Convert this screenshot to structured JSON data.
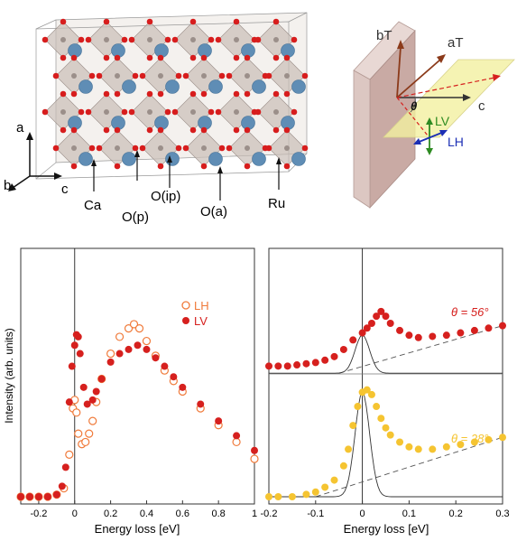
{
  "crystal": {
    "axes": {
      "a": "a",
      "b": "b",
      "c": "c"
    },
    "labels": [
      "Ca",
      "O(p)",
      "O(ip)",
      "O(a)",
      "Ru"
    ]
  },
  "geometry": {
    "labels": {
      "bT": "bT",
      "aT": "aT",
      "c": "c",
      "theta": "θ",
      "LV": "LV",
      "LH": "LH"
    },
    "colors": {
      "bT": "#8b3a1a",
      "aT": "#8b3a1a",
      "LV": "#2e8b22",
      "LH": "#1c2fb5",
      "plane": "#f3f0a0",
      "slab": "#d9c3bd"
    }
  },
  "chart_data": [
    {
      "type": "scatter",
      "xlabel": "Energy loss [eV]",
      "ylabel": "Intensity (arb. units)",
      "xlim": [
        -0.3,
        1.0
      ],
      "xticks": [
        -0.2,
        0,
        0.2,
        0.4,
        0.6,
        0.8,
        1
      ],
      "xtick_labels": [
        "-0.2",
        "0",
        "0.2",
        "0.4",
        "0.6",
        "0.8",
        "1"
      ],
      "ylim": [
        0,
        1.0
      ],
      "legend": "top-right",
      "series": [
        {
          "name": "LH",
          "color": "#f07a3a",
          "marker": "open-circle",
          "x": [
            -0.3,
            -0.25,
            -0.2,
            -0.15,
            -0.1,
            -0.06,
            -0.03,
            -0.01,
            0.0,
            0.01,
            0.02,
            0.04,
            0.06,
            0.08,
            0.1,
            0.12,
            0.15,
            0.2,
            0.25,
            0.3,
            0.33,
            0.36,
            0.4,
            0.45,
            0.5,
            0.55,
            0.6,
            0.7,
            0.8,
            0.9,
            1.0
          ],
          "y": [
            0.0,
            0.0,
            0.0,
            0.0,
            0.01,
            0.04,
            0.2,
            0.42,
            0.46,
            0.4,
            0.3,
            0.25,
            0.26,
            0.3,
            0.36,
            0.45,
            0.56,
            0.68,
            0.76,
            0.8,
            0.82,
            0.8,
            0.74,
            0.67,
            0.6,
            0.55,
            0.5,
            0.42,
            0.34,
            0.26,
            0.18
          ]
        },
        {
          "name": "LV",
          "color": "#d6201e",
          "marker": "filled-circle",
          "x": [
            -0.3,
            -0.25,
            -0.2,
            -0.15,
            -0.1,
            -0.07,
            -0.05,
            -0.03,
            -0.015,
            0.0,
            0.01,
            0.02,
            0.03,
            0.05,
            0.07,
            0.1,
            0.12,
            0.15,
            0.2,
            0.25,
            0.3,
            0.35,
            0.4,
            0.45,
            0.5,
            0.55,
            0.6,
            0.7,
            0.8,
            0.9,
            1.0
          ],
          "y": [
            0.0,
            0.0,
            0.0,
            0.0,
            0.01,
            0.05,
            0.14,
            0.45,
            0.62,
            0.72,
            0.77,
            0.76,
            0.68,
            0.52,
            0.44,
            0.46,
            0.5,
            0.56,
            0.64,
            0.68,
            0.7,
            0.72,
            0.7,
            0.66,
            0.62,
            0.57,
            0.52,
            0.44,
            0.36,
            0.29,
            0.22
          ]
        }
      ]
    },
    {
      "type": "scatter",
      "xlabel": "Energy loss [eV]",
      "xlim": [
        -0.2,
        0.3
      ],
      "xticks": [
        -0.2,
        -0.1,
        0,
        0.1,
        0.2,
        0.3
      ],
      "xtick_labels": [
        "-0.2",
        "-0.1",
        "0",
        "0.1",
        "0.2",
        "0.3"
      ],
      "ylim": [
        0,
        1.0
      ],
      "series": [
        {
          "name": "θ = 56°",
          "color": "#d6201e",
          "marker": "filled-circle",
          "x": [
            -0.2,
            -0.18,
            -0.16,
            -0.14,
            -0.12,
            -0.1,
            -0.08,
            -0.06,
            -0.04,
            -0.02,
            0.0,
            0.01,
            0.02,
            0.03,
            0.04,
            0.05,
            0.06,
            0.08,
            0.1,
            0.12,
            0.15,
            0.18,
            0.21,
            0.24,
            0.27,
            0.3
          ],
          "y": [
            0.55,
            0.55,
            0.55,
            0.555,
            0.56,
            0.565,
            0.575,
            0.59,
            0.62,
            0.66,
            0.69,
            0.71,
            0.73,
            0.76,
            0.78,
            0.76,
            0.73,
            0.7,
            0.68,
            0.67,
            0.675,
            0.68,
            0.69,
            0.7,
            0.71,
            0.72
          ]
        },
        {
          "name": "θ = 28°",
          "color": "#f5c431",
          "marker": "filled-circle",
          "x": [
            -0.2,
            -0.18,
            -0.15,
            -0.12,
            -0.1,
            -0.08,
            -0.06,
            -0.04,
            -0.03,
            -0.02,
            -0.01,
            0.0,
            0.01,
            0.02,
            0.03,
            0.04,
            0.05,
            0.06,
            0.08,
            0.1,
            0.12,
            0.15,
            0.18,
            0.21,
            0.24,
            0.27,
            0.3
          ],
          "y": [
            0.0,
            0.0,
            0.0,
            0.01,
            0.02,
            0.04,
            0.07,
            0.13,
            0.2,
            0.3,
            0.38,
            0.44,
            0.45,
            0.43,
            0.38,
            0.33,
            0.29,
            0.26,
            0.23,
            0.21,
            0.2,
            0.2,
            0.21,
            0.22,
            0.23,
            0.24,
            0.25
          ]
        }
      ],
      "annotations": [
        {
          "text": "θ = 56°",
          "color": "#d6201e"
        },
        {
          "text": "θ = 28°",
          "color": "#f5c431"
        }
      ]
    }
  ]
}
